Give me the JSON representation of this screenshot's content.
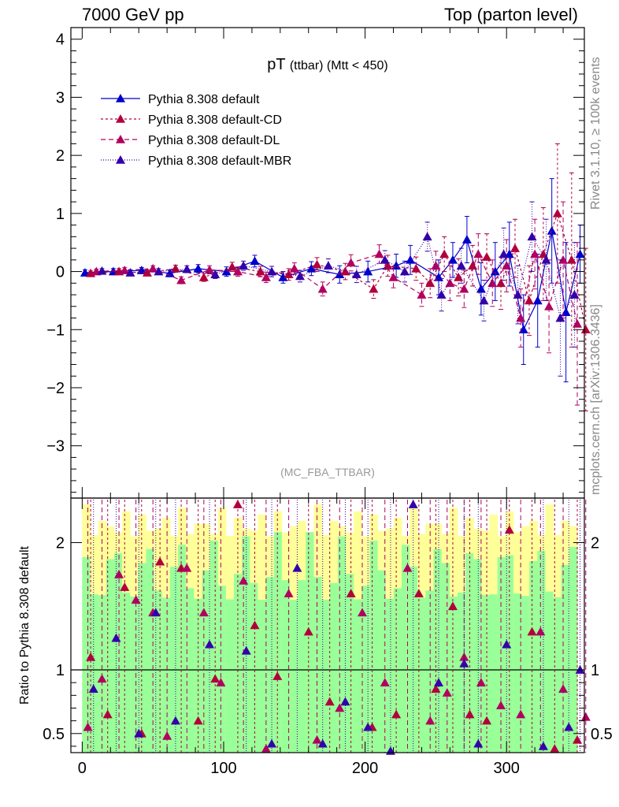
{
  "header": {
    "left": "7000 GeV pp",
    "right": "Top (parton level)"
  },
  "side_labels": {
    "rivet": "Rivet 3.1.10, ≥ 100k events",
    "mcplots": "mcplots.cern.ch [arXiv:1306.3436]"
  },
  "chart_data": [
    {
      "type": "scatter",
      "title": "pT (ttbar) (Mtt < 450)",
      "title_main": "pT",
      "title_sub": "(ttbar) (Mtt < 450)",
      "watermark": "(MC_FBA_TTBAR)",
      "xlim": [
        -8,
        355
      ],
      "ylim": [
        -3.9,
        4.2
      ],
      "x_ticks": [
        0,
        100,
        200,
        300
      ],
      "y_ticks": [
        -3,
        -2,
        -1,
        0,
        1,
        2,
        3,
        4
      ],
      "y_tick_labels": [
        "−3",
        "−2",
        "−1",
        "0",
        "1",
        "2",
        "3",
        "4"
      ],
      "legend_position": "top-left",
      "grid": false,
      "series": [
        {
          "name": "Pythia 8.308 default",
          "color": "#0000cc",
          "dash": "none",
          "x": [
            2,
            22,
            42,
            62,
            82,
            102,
            122,
            142,
            162,
            182,
            202,
            222,
            232,
            252,
            262,
            272,
            282,
            292,
            302,
            312,
            322,
            332,
            342,
            352
          ],
          "y": [
            -0.02,
            0.0,
            0.02,
            -0.03,
            0.05,
            0.0,
            0.18,
            -0.1,
            0.05,
            -0.05,
            0.0,
            0.1,
            0.2,
            -0.1,
            0.2,
            0.55,
            -0.3,
            0.0,
            0.3,
            -1.0,
            -0.5,
            0.7,
            -0.7,
            0.3
          ],
          "err": [
            0.05,
            0.05,
            0.05,
            0.06,
            0.07,
            0.08,
            0.1,
            0.1,
            0.12,
            0.15,
            0.18,
            0.2,
            0.25,
            0.3,
            0.3,
            0.4,
            0.45,
            0.5,
            0.55,
            0.6,
            0.8,
            0.9,
            1.2,
            0.5
          ]
        },
        {
          "name": "Pythia 8.308 default-CD",
          "color": "#b2003b",
          "dash": "3,3",
          "x": [
            6,
            26,
            46,
            66,
            86,
            106,
            126,
            146,
            166,
            186,
            206,
            216,
            236,
            246,
            256,
            266,
            276,
            286,
            296,
            306,
            316,
            326,
            336,
            346,
            356
          ],
          "y": [
            -0.03,
            0.0,
            -0.02,
            0.05,
            -0.1,
            0.08,
            0.0,
            -0.05,
            0.12,
            0.0,
            -0.3,
            0.1,
            0.05,
            -0.2,
            0.3,
            -0.1,
            0.1,
            0.25,
            -0.2,
            0.4,
            -0.5,
            0.3,
            1.0,
            0.2,
            -1.0
          ],
          "err": [
            0.04,
            0.05,
            0.05,
            0.06,
            0.07,
            0.08,
            0.09,
            0.1,
            0.12,
            0.14,
            0.16,
            0.18,
            0.2,
            0.25,
            0.3,
            0.32,
            0.35,
            0.4,
            0.45,
            0.5,
            0.6,
            0.8,
            1.2,
            1.5,
            1.4
          ]
        },
        {
          "name": "Pythia 8.308 default-DL",
          "color": "#b20060",
          "dash": "6,4",
          "x": [
            10,
            30,
            50,
            70,
            90,
            110,
            130,
            150,
            170,
            190,
            210,
            220,
            240,
            250,
            260,
            270,
            280,
            290,
            300,
            310,
            320,
            330,
            340,
            350
          ],
          "y": [
            0.0,
            0.02,
            0.05,
            -0.15,
            0.03,
            0.0,
            -0.1,
            0.05,
            -0.3,
            0.15,
            0.3,
            -0.1,
            -0.4,
            0.1,
            -0.2,
            -0.3,
            0.3,
            -0.2,
            0.1,
            -0.8,
            0.3,
            -0.6,
            0.2,
            -0.9
          ],
          "err": [
            0.04,
            0.05,
            0.05,
            0.06,
            0.07,
            0.08,
            0.09,
            0.1,
            0.12,
            0.14,
            0.16,
            0.18,
            0.2,
            0.25,
            0.3,
            0.32,
            0.35,
            0.4,
            0.45,
            0.5,
            0.6,
            0.8,
            1.0,
            1.4
          ]
        },
        {
          "name": "Pythia 8.308 default-MBR",
          "color": "#3300aa",
          "dash": "1,2",
          "x": [
            14,
            34,
            54,
            74,
            94,
            114,
            134,
            154,
            174,
            194,
            214,
            228,
            244,
            254,
            268,
            284,
            298,
            308,
            318,
            328,
            338,
            348
          ],
          "y": [
            0.01,
            -0.02,
            0.0,
            0.04,
            -0.05,
            0.1,
            0.0,
            -0.08,
            0.1,
            -0.05,
            0.2,
            0.0,
            0.6,
            -0.4,
            0.1,
            -0.5,
            0.3,
            -0.4,
            0.6,
            0.2,
            -0.8,
            -0.4
          ],
          "err": [
            0.04,
            0.05,
            0.05,
            0.06,
            0.07,
            0.08,
            0.09,
            0.1,
            0.12,
            0.14,
            0.16,
            0.18,
            0.25,
            0.28,
            0.3,
            0.35,
            0.45,
            0.5,
            0.6,
            0.7,
            1.0,
            0.9
          ]
        }
      ]
    },
    {
      "type": "scatter",
      "ylabel": "Ratio to Pythia 8.308 default",
      "xlim": [
        -8,
        355
      ],
      "ylim": [
        0.35,
        2.35
      ],
      "x_ticks": [
        0,
        100,
        200,
        300
      ],
      "y_ticks": [
        0.5,
        1,
        2
      ],
      "y_tick_labels": [
        "0.5",
        "1",
        "2"
      ],
      "reference_line": 1,
      "band_colors": {
        "outer": "#ffff99",
        "inner": "#99ff99"
      },
      "series": [
        {
          "name": "Pythia 8.308 default-CD",
          "color": "#b2003b",
          "x": [
            6,
            18,
            30,
            42,
            55,
            70,
            82,
            94,
            110,
            122,
            138,
            160,
            175,
            190,
            205,
            222,
            238,
            250,
            262,
            274,
            286,
            302,
            318,
            334,
            350
          ],
          "y": [
            1.1,
            0.65,
            1.65,
            0.5,
            1.85,
            1.8,
            0.6,
            0.93,
            2.3,
            1.35,
            0.95,
            1.3,
            0.75,
            1.6,
            0.55,
            0.65,
            1.6,
            0.85,
            1.5,
            0.65,
            0.6,
            2.1,
            1.3,
            0.38,
            0.45
          ]
        },
        {
          "name": "Pythia 8.308 default-DL",
          "color": "#b20060",
          "x": [
            4,
            14,
            26,
            38,
            50,
            60,
            74,
            86,
            98,
            114,
            130,
            146,
            166,
            182,
            198,
            214,
            230,
            246,
            258,
            270,
            282,
            296,
            310,
            324,
            340,
            356
          ],
          "y": [
            0.55,
            0.93,
            1.75,
            1.55,
            1.45,
            0.48,
            1.8,
            1.45,
            0.9,
            1.7,
            0.38,
            1.6,
            0.45,
            0.7,
            1.45,
            0.9,
            1.8,
            0.6,
            0.82,
            1.1,
            0.9,
            0.72,
            0.65,
            1.3,
            0.85,
            0.63
          ]
        },
        {
          "name": "Pythia 8.308 default-MBR",
          "color": "#3300aa",
          "x": [
            8,
            24,
            40,
            52,
            66,
            90,
            116,
            134,
            152,
            170,
            186,
            202,
            218,
            234,
            252,
            270,
            280,
            300,
            326,
            344,
            352
          ],
          "y": [
            0.85,
            1.25,
            0.5,
            1.45,
            0.6,
            1.2,
            1.15,
            0.42,
            1.8,
            0.42,
            0.75,
            0.55,
            0.35,
            2.3,
            0.9,
            1.05,
            0.42,
            1.2,
            0.4,
            0.55,
            1.0
          ]
        }
      ]
    }
  ]
}
